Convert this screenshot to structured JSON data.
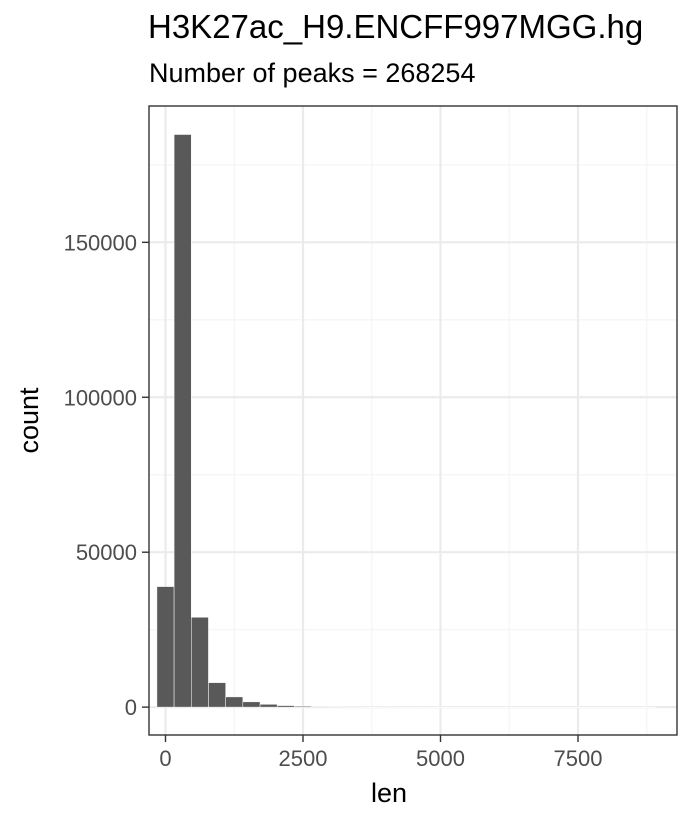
{
  "chart_data": {
    "type": "bar",
    "title": "H3K27ac_H9.ENCFF997MGG.hg",
    "subtitle": "Number of peaks = 268254",
    "xlabel": "len",
    "ylabel": "count",
    "xlim": [
      -300,
      9300
    ],
    "ylim": [
      -9000,
      194000
    ],
    "x_ticks": [
      0,
      2500,
      5000,
      7500
    ],
    "y_ticks": [
      0,
      50000,
      100000,
      150000
    ],
    "x_minor": [
      1250,
      3750,
      6250,
      8750
    ],
    "y_minor": [
      25000,
      75000,
      125000,
      175000
    ],
    "grid": true,
    "bin_width": 312.5,
    "bins": [
      {
        "x0": -156,
        "x1": 156,
        "count": 38900
      },
      {
        "x0": 156,
        "x1": 469,
        "count": 184800
      },
      {
        "x0": 469,
        "x1": 781,
        "count": 29000
      },
      {
        "x0": 781,
        "x1": 1094,
        "count": 7900
      },
      {
        "x0": 1094,
        "x1": 1406,
        "count": 3300
      },
      {
        "x0": 1406,
        "x1": 1719,
        "count": 1700
      },
      {
        "x0": 1719,
        "x1": 2031,
        "count": 900
      },
      {
        "x0": 2031,
        "x1": 2344,
        "count": 500
      },
      {
        "x0": 2344,
        "x1": 2656,
        "count": 300
      },
      {
        "x0": 2656,
        "x1": 2969,
        "count": 180
      },
      {
        "x0": 2969,
        "x1": 3281,
        "count": 110
      },
      {
        "x0": 3281,
        "x1": 3594,
        "count": 70
      },
      {
        "x0": 3594,
        "x1": 3906,
        "count": 45
      },
      {
        "x0": 3906,
        "x1": 4219,
        "count": 30
      },
      {
        "x0": 4219,
        "x1": 4531,
        "count": 20
      },
      {
        "x0": 4531,
        "x1": 4844,
        "count": 14
      },
      {
        "x0": 4844,
        "x1": 5156,
        "count": 10
      },
      {
        "x0": 5156,
        "x1": 5469,
        "count": 7
      },
      {
        "x0": 5469,
        "x1": 5781,
        "count": 5
      },
      {
        "x0": 5781,
        "x1": 6094,
        "count": 4
      },
      {
        "x0": 6094,
        "x1": 6406,
        "count": 3
      },
      {
        "x0": 6406,
        "x1": 6719,
        "count": 2
      },
      {
        "x0": 6719,
        "x1": 7031,
        "count": 2
      },
      {
        "x0": 7031,
        "x1": 7344,
        "count": 1
      },
      {
        "x0": 7344,
        "x1": 7656,
        "count": 1
      },
      {
        "x0": 7656,
        "x1": 7969,
        "count": 1
      },
      {
        "x0": 7969,
        "x1": 8281,
        "count": 1
      },
      {
        "x0": 8281,
        "x1": 8594,
        "count": 1
      },
      {
        "x0": 8594,
        "x1": 8906,
        "count": 1
      }
    ]
  },
  "colors": {
    "bar_fill": "#595959",
    "bar_stroke": "#ffffff",
    "grid_major": "#ebebeb",
    "grid_minor": "#f5f5f5",
    "panel_border": "#333333",
    "tick_text": "#4d4d4d"
  }
}
